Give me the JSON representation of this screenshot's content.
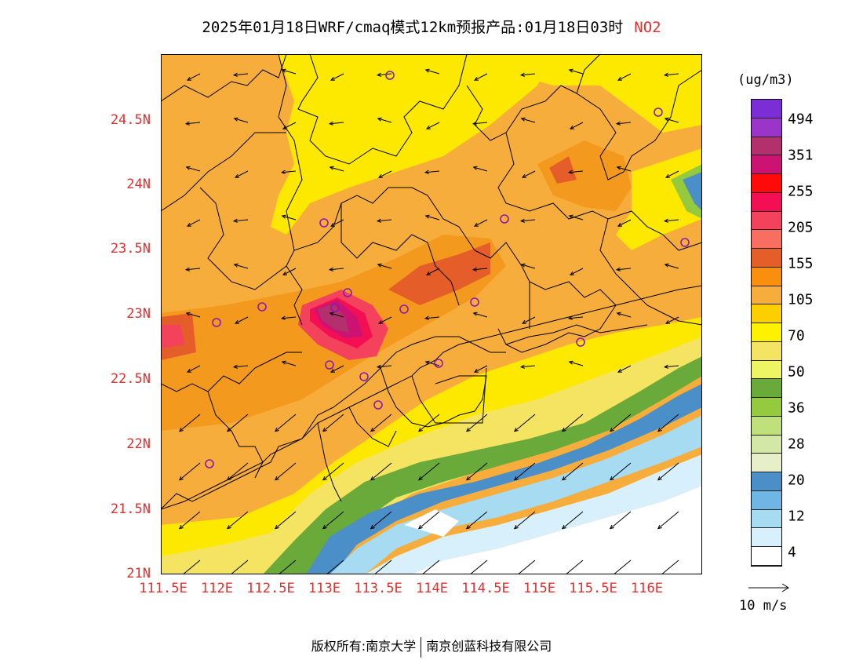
{
  "title": {
    "main": "2025年01月18日WRF/cmaq模式12km预报产品:01月18日03时",
    "species": "NO2"
  },
  "map": {
    "lon_range": [
      111.5,
      116.5
    ],
    "lat_range": [
      21.0,
      25.0
    ],
    "y_ticks": [
      "24.5N",
      "24N",
      "23.5N",
      "23N",
      "22.5N",
      "22N",
      "21.5N",
      "21N"
    ],
    "x_ticks": [
      "111.5E",
      "112E",
      "112.5E",
      "113E",
      "113.5E",
      "114E",
      "114.5E",
      "115E",
      "115.5E",
      "116E"
    ],
    "colors": {
      "ocean": "#ffffff",
      "coast_blue": "#d0ebf9",
      "mid_blue": "#9ad6f1",
      "deep_blue": "#4b93c8",
      "green": "#6aaa3a",
      "lime": "#f0f46a",
      "light_yellow": "#f6e542",
      "yellow": "#fde800",
      "orange_light": "#f7ad3c",
      "orange": "#f39a1e",
      "orange_dark": "#e55d28",
      "red": "#f02850",
      "magenta": "#c3127e",
      "purple": "#93269c"
    },
    "stations_icon": "circle-marker-icon",
    "arrows_icon": "wind-arrow-icon"
  },
  "legend": {
    "units": "(ug/m3)",
    "segments": [
      {
        "color": "#7b2ed6"
      },
      {
        "color": "#9b35c9"
      },
      {
        "color": "#b2306b"
      },
      {
        "color": "#cc1273"
      },
      {
        "color": "#ff0a0a"
      },
      {
        "color": "#f40f55"
      },
      {
        "color": "#f4415c"
      },
      {
        "color": "#f86e61"
      },
      {
        "color": "#e55d28"
      },
      {
        "color": "#f98f0c"
      },
      {
        "color": "#f7ad3c"
      },
      {
        "color": "#fdcf00"
      },
      {
        "color": "#fff200"
      },
      {
        "color": "#f4e462"
      },
      {
        "color": "#eef565"
      },
      {
        "color": "#6aaa3a"
      },
      {
        "color": "#95ca3f"
      },
      {
        "color": "#bfe07a"
      },
      {
        "color": "#d3e8a6"
      },
      {
        "color": "#e6efc8"
      },
      {
        "color": "#4a8fc8"
      },
      {
        "color": "#70b6e4"
      },
      {
        "color": "#a6dbf2"
      },
      {
        "color": "#d8f0fb"
      },
      {
        "color": "#ffffff"
      }
    ],
    "labels": [
      "494",
      "351",
      "255",
      "205",
      "155",
      "105",
      "70",
      "50",
      "36",
      "28",
      "20",
      "12",
      "4"
    ]
  },
  "vector_ref": {
    "label": "10 m/s"
  },
  "footer": {
    "left": "版权所有:南京大学",
    "right": "南京创蓝科技有限公司"
  }
}
